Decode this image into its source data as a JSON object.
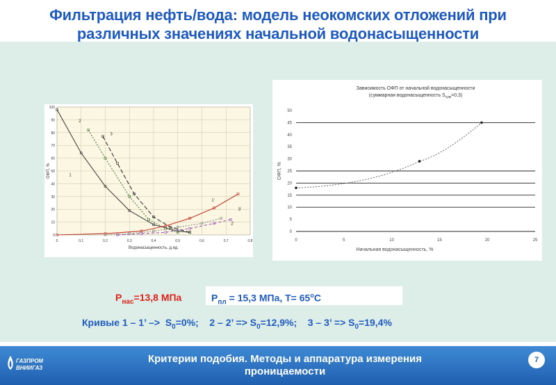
{
  "slide": {
    "title_line1": "Фильтрация нефть/вода: модель неокомских отложений при",
    "title_line2": "различных значениях начальной водонасыщенности"
  },
  "conditions": {
    "pnas_prefix": "P",
    "pnas_sub": "нас",
    "pnas_value": "=13,8 МПа",
    "ppl_prefix": "P",
    "ppl_sub": "пл",
    "ppl_value": " = 15,3 МПа, T= 65",
    "ppl_deg": "o",
    "ppl_unit": "C"
  },
  "curves_legend": {
    "c1": "Кривые 1 – 1’ –>  S",
    "c1_sub": "0",
    "c1_val": "=0%;    2 – 2’ => S",
    "c2_sub": "0",
    "c2_val": "=12,9%;    3 – 3’ => S",
    "c3_sub": "0",
    "c3_val": "=19,4%"
  },
  "footer": {
    "line1": "Критерии подобия. Методы и аппаратура измерения",
    "line2": "проницаемости",
    "page": "7",
    "logo_line1": "ГАЗПРОМ",
    "logo_line2": "ВНИИГАЗ"
  },
  "chart_data": [
    {
      "type": "line",
      "xlabel": "Водонасыщенность, д.ед.",
      "ylabel": "ОФП, %",
      "xlim": [
        0,
        0.8
      ],
      "ylim": [
        0,
        100
      ],
      "x_ticks": [
        "0",
        "0,1",
        "0,2",
        "0,3",
        "0,4",
        "0,5",
        "0,6",
        "0,7",
        "0,8"
      ],
      "y_ticks": [
        "0",
        "10",
        "20",
        "30",
        "40",
        "50",
        "60",
        "70",
        "80",
        "90",
        "100"
      ],
      "curve_labels": [
        "1",
        "2",
        "3",
        "1'",
        "2'",
        "3'"
      ],
      "series": [
        {
          "name": "1",
          "color": "#444444",
          "dash": "",
          "x": [
            0,
            0.1,
            0.2,
            0.3,
            0.4,
            0.5,
            0.55
          ],
          "y": [
            98,
            64,
            38,
            19,
            8,
            3,
            2
          ]
        },
        {
          "name": "2",
          "color": "#4a7a3a",
          "dash": "2,2",
          "x": [
            0.13,
            0.2,
            0.3,
            0.38,
            0.45,
            0.5
          ],
          "y": [
            82,
            60,
            30,
            12,
            5,
            2
          ]
        },
        {
          "name": "3",
          "color": "#333333",
          "dash": "6,3",
          "x": [
            0.19,
            0.25,
            0.32,
            0.4,
            0.47,
            0.55
          ],
          "y": [
            77,
            56,
            32,
            14,
            6,
            2
          ]
        },
        {
          "name": "1'",
          "color": "#c0392b",
          "dash": "",
          "x": [
            0,
            0.2,
            0.35,
            0.45,
            0.55,
            0.65,
            0.75
          ],
          "y": [
            0,
            1,
            3,
            7,
            13,
            21,
            32
          ]
        },
        {
          "name": "2'",
          "color": "#888888",
          "dash": "2,2",
          "x": [
            0.2,
            0.3,
            0.4,
            0.5,
            0.6,
            0.68
          ],
          "y": [
            0,
            1,
            3,
            6,
            9,
            13
          ]
        },
        {
          "name": "3'",
          "color": "#9b59b6",
          "dash": "4,3",
          "x": [
            0.25,
            0.35,
            0.45,
            0.55,
            0.65,
            0.72
          ],
          "y": [
            0,
            1,
            2,
            5,
            9,
            12
          ]
        }
      ]
    },
    {
      "type": "line",
      "title_line1": "Зависимость ОФП от начальной водонасыщенности",
      "title_line2": "(суммарная водонасыщенность S",
      "title_sub": "сум",
      "title_tail": "=0,3)",
      "xlabel": "Начальная водонасыщенность, %",
      "ylabel": "ОФП, %",
      "xlim": [
        0,
        25
      ],
      "ylim": [
        0,
        50
      ],
      "x_ticks": [
        "0",
        "5",
        "10",
        "15",
        "20",
        "25"
      ],
      "y_ticks": [
        "0",
        "5",
        "10",
        "15",
        "20",
        "25",
        "30",
        "35",
        "40",
        "45",
        "50"
      ],
      "grid_values": [
        10,
        15,
        20,
        25,
        45
      ],
      "series": [
        {
          "name": "",
          "color": "#555555",
          "dash": "2,2",
          "x": [
            0,
            12.9,
            19.4
          ],
          "y": [
            18,
            29,
            45
          ]
        }
      ]
    }
  ]
}
